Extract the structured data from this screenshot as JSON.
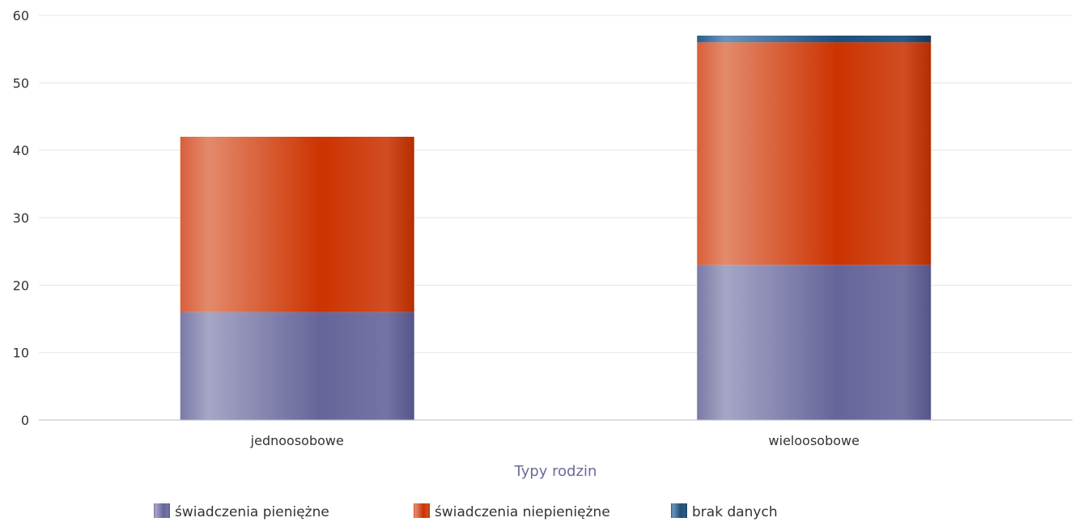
{
  "chart_data": {
    "type": "bar",
    "stacked": true,
    "categories": [
      "jednoosobowe",
      "wieloosobowe"
    ],
    "series": [
      {
        "name": "świadczenia pieniężne",
        "values": [
          16,
          23
        ],
        "color": "#6b6b9a"
      },
      {
        "name": "świadczenia niepieniężne",
        "values": [
          26,
          33
        ],
        "color": "#cc3300"
      },
      {
        "name": "brak danych",
        "values": [
          0,
          1
        ],
        "color": "#1f4e79"
      }
    ],
    "xlabel": "Typy rodzin",
    "ylabel": "",
    "ylim": [
      0,
      60
    ],
    "yticks": [
      0,
      10,
      20,
      30,
      40,
      50,
      60
    ],
    "grid": true,
    "legend_position": "bottom"
  }
}
